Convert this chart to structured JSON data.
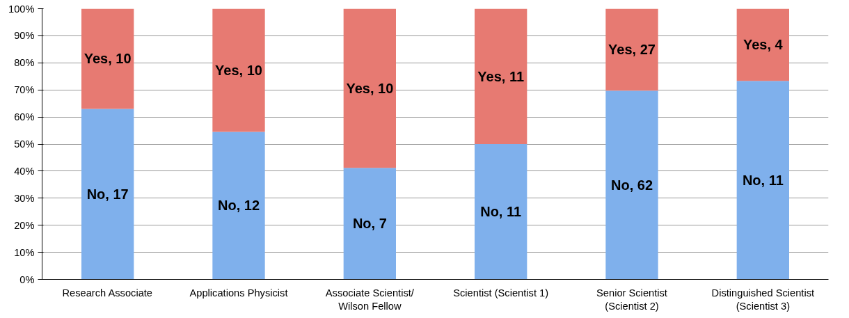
{
  "chart_data": {
    "type": "bar",
    "stacked": true,
    "categories": [
      "Research Associate",
      "Applications Physicist",
      "Associate Scientist/\nWilson Fellow",
      "Scientist (Scientist 1)",
      "Senior Scientist\n(Scientist 2)",
      "Distinguished Scientist\n(Scientist 3)"
    ],
    "series": [
      {
        "color": "#7fb0ec",
        "values": [
          63.0,
          54.5,
          41.2,
          50.0,
          69.7,
          73.3
        ]
      },
      {
        "color": "#e77a72",
        "values": [
          37.0,
          45.5,
          58.8,
          50.0,
          30.3,
          26.7
        ]
      }
    ],
    "annotations": [
      "No, 17",
      "No, 12",
      "No, 7",
      "No, 11",
      "No, 62",
      "No, 11",
      "Yes, 10",
      "Yes, 10",
      "Yes, 10",
      "Yes, 11",
      "Yes, 27",
      "Yes, 4"
    ],
    "ylim": [
      0,
      100
    ],
    "yticks": [
      {
        "value": 0,
        "label": "0%"
      },
      {
        "value": 10,
        "label": "10%"
      },
      {
        "value": 20,
        "label": "20%"
      },
      {
        "value": 30,
        "label": "30%"
      },
      {
        "value": 40,
        "label": "40%"
      },
      {
        "value": 50,
        "label": "50%"
      },
      {
        "value": 60,
        "label": "60%"
      },
      {
        "value": 70,
        "label": "70%"
      },
      {
        "value": 80,
        "label": "80%"
      },
      {
        "value": 90,
        "label": "90%"
      },
      {
        "value": 100,
        "label": "100%"
      }
    ],
    "grid": "y"
  }
}
